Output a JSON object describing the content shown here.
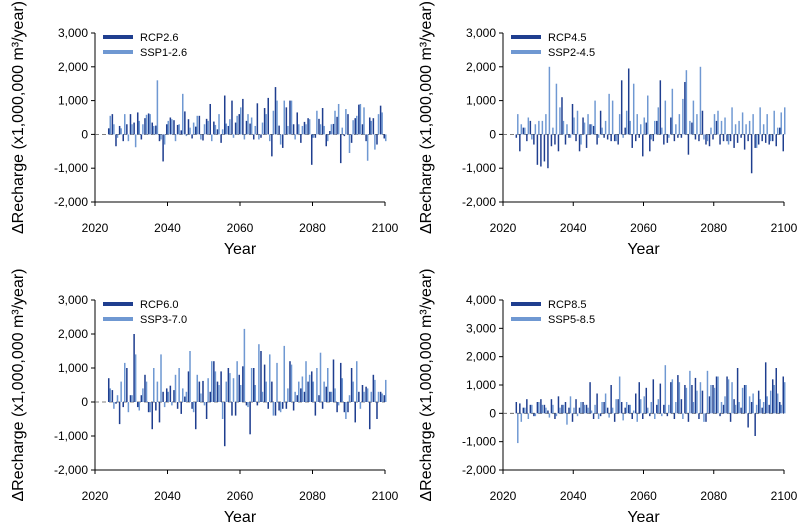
{
  "colors": {
    "rcp": "#1f3e8f",
    "ssp": "#6f98d2"
  },
  "chart_data": [
    {
      "type": "bar",
      "xlabel": "Year",
      "ylabel": "ΔRecharge (x1,000,000 m³/year)",
      "ylim": [
        -2000,
        3000
      ],
      "yticks": [
        -2000,
        -1000,
        0,
        1000,
        2000,
        3000
      ],
      "ytick_labels": [
        "-2,000",
        "-1,000",
        "0",
        "1,000",
        "2,000",
        "3,000"
      ],
      "xlim": [
        2020,
        2100
      ],
      "xticks": [
        2020,
        2040,
        2060,
        2080,
        2100
      ],
      "xtick_labels": [
        "2020",
        "2040",
        "2060",
        "2080",
        "2100"
      ],
      "legend_position": "top-left",
      "series": [
        {
          "name": "RCP2.6",
          "x_start": 2024,
          "values": [
            180,
            600,
            -350,
            250,
            -200,
            300,
            600,
            350,
            650,
            -150,
            480,
            620,
            350,
            260,
            -200,
            -800,
            300,
            500,
            420,
            280,
            120,
            680,
            450,
            -120,
            230,
            550,
            -180,
            460,
            900,
            380,
            150,
            -250,
            1150,
            250,
            1000,
            350,
            600,
            1050,
            400,
            320,
            -150,
            920,
            -100,
            780,
            1080,
            -650,
            1400,
            260,
            -400,
            800,
            1000,
            300,
            650,
            -250,
            370,
            480,
            -900,
            -100,
            460,
            780,
            -350,
            100,
            310,
            520,
            -850,
            -50,
            600,
            -250,
            480,
            880,
            300,
            -200,
            500,
            480,
            -300,
            850,
            -120
          ]
        },
        {
          "name": "SSP1-2.6",
          "x_start": 2024,
          "values": [
            550,
            300,
            -100,
            180,
            600,
            -200,
            300,
            -380,
            400,
            300,
            580,
            600,
            250,
            1600,
            -150,
            -300,
            400,
            450,
            -200,
            300,
            1200,
            -50,
            200,
            350,
            550,
            -150,
            300,
            400,
            -200,
            280,
            600,
            150,
            320,
            450,
            -100,
            550,
            800,
            -150,
            600,
            500,
            250,
            -150,
            350,
            600,
            -200,
            700,
            1000,
            -300,
            1000,
            250,
            1000,
            -150,
            300,
            250,
            300,
            450,
            -100,
            700,
            300,
            250,
            -200,
            300,
            700,
            900,
            200,
            750,
            -550,
            420,
            550,
            900,
            800,
            -780,
            400,
            -450,
            600,
            650,
            -200
          ]
        },
        {
          "name": "RCP6.0",
          "x_start": 2024,
          "values": [
            700,
            350,
            -50,
            -650,
            -150,
            1000,
            200,
            2000,
            -150,
            200,
            800,
            -300,
            -800,
            -250,
            -600,
            300,
            400,
            480,
            350,
            -200,
            -350,
            160,
            900,
            -200,
            -800,
            600,
            620,
            -500,
            300,
            1200,
            600,
            900,
            -1300,
            1000,
            -400,
            -400,
            800,
            1050,
            -100,
            -950,
            1000,
            -100,
            1500,
            1100,
            -200,
            600,
            -400,
            -250,
            -200,
            -200,
            1200,
            -250,
            200,
            400,
            300,
            600,
            900,
            -400,
            200,
            -200,
            450,
            300,
            1250,
            -300,
            1150,
            -300,
            -300,
            1000,
            -600,
            300,
            500,
            450,
            -800,
            800,
            -500,
            300,
            200
          ]
        },
        {
          "name": "SSP3-7.0",
          "x_start": 2024,
          "values": [
            400,
            -200,
            200,
            600,
            1150,
            -300,
            200,
            1400,
            -250,
            400,
            600,
            -300,
            1000,
            600,
            1400,
            -150,
            300,
            -100,
            800,
            1000,
            400,
            300,
            1500,
            -300,
            800,
            250,
            -100,
            700,
            1200,
            900,
            500,
            -500,
            600,
            850,
            700,
            1200,
            500,
            2150,
            -150,
            1000,
            500,
            1700,
            300,
            600,
            1400,
            -400,
            1150,
            -300,
            1650,
            400,
            1100,
            300,
            600,
            750,
            1200,
            800,
            600,
            1000,
            1450,
            600,
            1000,
            300,
            400,
            -100,
            700,
            -500,
            200,
            600,
            1200,
            -200,
            300,
            400,
            300,
            650,
            300,
            250,
            650
          ]
        },
        {
          "name": "RCP4.5",
          "x_start": 2024,
          "values": [
            -100,
            -500,
            200,
            -200,
            400,
            -300,
            -900,
            -950,
            -800,
            -1000,
            -350,
            -300,
            -500,
            1100,
            -300,
            -100,
            900,
            -200,
            -500,
            500,
            -400,
            300,
            250,
            -300,
            700,
            -100,
            -150,
            -200,
            -200,
            -300,
            1600,
            200,
            1950,
            -400,
            -200,
            -100,
            -650,
            350,
            -500,
            -200,
            400,
            1600,
            -300,
            -250,
            500,
            -200,
            -100,
            -100,
            1550,
            -600,
            350,
            -150,
            -200,
            700,
            -300,
            -350,
            -150,
            400,
            -300,
            -200,
            -200,
            -200,
            -400,
            -250,
            -100,
            -450,
            -200,
            -1150,
            -400,
            -300,
            -200,
            -250,
            -300,
            -200,
            -350,
            200,
            -500
          ]
        },
        {
          "name": "SSP2-4.5",
          "x_start": 2024,
          "values": [
            600,
            300,
            200,
            500,
            -150,
            300,
            400,
            400,
            600,
            2000,
            200,
            1500,
            800,
            400,
            300,
            -100,
            500,
            700,
            -300,
            350,
            600,
            300,
            1000,
            -100,
            200,
            400,
            1200,
            1000,
            -200,
            600,
            -100,
            700,
            400,
            1500,
            600,
            300,
            500,
            1150,
            -150,
            400,
            800,
            200,
            1000,
            -100,
            1350,
            300,
            600,
            1050,
            1900,
            400,
            1000,
            600,
            2000,
            -150,
            -200,
            200,
            600,
            700,
            400,
            500,
            -300,
            800,
            300,
            400,
            650,
            300,
            400,
            600,
            -400,
            800,
            300,
            600,
            -200,
            700,
            200,
            650,
            800
          ]
        },
        {
          "name": "RCP8.5",
          "x_start": 2024,
          "values": [
            400,
            350,
            200,
            500,
            300,
            -100,
            400,
            500,
            300,
            100,
            500,
            -200,
            600,
            300,
            400,
            200,
            -300,
            500,
            200,
            400,
            300,
            1100,
            -200,
            700,
            -100,
            400,
            200,
            1000,
            -300,
            500,
            400,
            200,
            300,
            -200,
            700,
            1100,
            -200,
            900,
            -100,
            1200,
            300,
            1050,
            300,
            -100,
            1100,
            -200,
            1350,
            500,
            1000,
            -300,
            1000,
            1250,
            -200,
            800,
            -300,
            600,
            1000,
            1300,
            -100,
            300,
            1300,
            -300,
            500,
            1600,
            200,
            1000,
            -500,
            400,
            -800,
            800,
            200,
            1800,
            300,
            1200,
            1600,
            400,
            1300
          ]
        },
        {
          "name": "SSP5-8.5",
          "x_start": 2024,
          "values": [
            -1050,
            -300,
            200,
            -200,
            300,
            -100,
            400,
            300,
            200,
            -150,
            300,
            -100,
            200,
            300,
            -400,
            600,
            200,
            -100,
            400,
            300,
            200,
            100,
            300,
            -200,
            400,
            700,
            -150,
            200,
            500,
            1300,
            -250,
            400,
            300,
            100,
            -300,
            500,
            600,
            200,
            400,
            -200,
            500,
            -100,
            1700,
            300,
            1200,
            400,
            1100,
            -200,
            900,
            1500,
            400,
            800,
            1100,
            -300,
            1500,
            1000,
            900,
            1300,
            400,
            600,
            1200,
            1100,
            300,
            400,
            900,
            1000,
            600,
            700,
            300,
            500,
            400,
            600,
            800,
            1000,
            700,
            300,
            1100
          ]
        }
      ]
    }
  ],
  "panels": [
    {
      "id": "p1",
      "series": [
        "RCP2.6",
        "SSP1-2.6"
      ],
      "ylim": [
        -2000,
        3000
      ],
      "yticks": [
        -2000,
        -1000,
        0,
        1000,
        2000,
        3000
      ],
      "ytick_labels": [
        "-2,000",
        "-1,000",
        "0",
        "1,000",
        "2,000",
        "3,000"
      ],
      "legend": [
        "RCP2.6",
        "SSP1-2.6"
      ],
      "xlabel": "Year",
      "ylabel": "ΔRecharge (x1,000,000 m³/year)"
    },
    {
      "id": "p2",
      "series": [
        "RCP4.5",
        "SSP2-4.5"
      ],
      "ylim": [
        -2000,
        3000
      ],
      "yticks": [
        -2000,
        -1000,
        0,
        1000,
        2000,
        3000
      ],
      "ytick_labels": [
        "-2,000",
        "-1,000",
        "0",
        "1,000",
        "2,000",
        "3,000"
      ],
      "legend": [
        "RCP4.5",
        "SSP2-4.5"
      ],
      "xlabel": "Year",
      "ylabel": "ΔRecharge (x1,000,000 m³/year)"
    },
    {
      "id": "p3",
      "series": [
        "RCP6.0",
        "SSP3-7.0"
      ],
      "ylim": [
        -2000,
        3000
      ],
      "yticks": [
        -2000,
        -1000,
        0,
        1000,
        2000,
        3000
      ],
      "ytick_labels": [
        "-2,000",
        "-1,000",
        "0",
        "1,000",
        "2,000",
        "3,000"
      ],
      "legend": [
        "RCP6.0",
        "SSP3-7.0"
      ],
      "xlabel": "Year",
      "ylabel": "ΔRecharge (x1,000,000 m³/year)"
    },
    {
      "id": "p4",
      "series": [
        "RCP8.5",
        "SSP5-8.5"
      ],
      "ylim": [
        -2000,
        4000
      ],
      "yticks": [
        -2000,
        -1000,
        0,
        1000,
        2000,
        3000,
        4000
      ],
      "ytick_labels": [
        "-2,000",
        "-1,000",
        "0",
        "1,000",
        "2,000",
        "3,000",
        "4,000"
      ],
      "legend": [
        "RCP8.5",
        "SSP5-8.5"
      ],
      "xlabel": "Year",
      "ylabel": "ΔRecharge (x1,000,000 m³/year)"
    }
  ],
  "xaxis": {
    "xlim": [
      2020,
      2100
    ],
    "xticks": [
      2020,
      2040,
      2060,
      2080,
      2100
    ],
    "xtick_labels": [
      "2020",
      "2040",
      "2060",
      "2080",
      "2100"
    ]
  }
}
